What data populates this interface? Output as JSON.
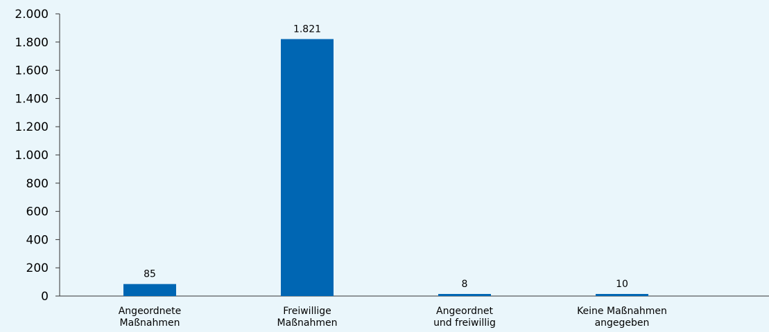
{
  "chart_data": {
    "type": "bar",
    "categories": [
      [
        "Angeordnete",
        "Maßnahmen"
      ],
      [
        "Freiwillige",
        "Maßnahmen"
      ],
      [
        "Angeordnet",
        "und freiwillig"
      ],
      [
        "Keine Maßnahmen",
        "angegeben"
      ]
    ],
    "values": [
      85,
      1821,
      8,
      10
    ],
    "value_labels": [
      "85",
      "1.821",
      "8",
      "10"
    ],
    "ylim": [
      0,
      2000
    ],
    "yticks": [
      0,
      200,
      400,
      600,
      800,
      1000,
      1200,
      1400,
      1600,
      1800,
      2000
    ],
    "ytick_labels": [
      "0",
      "200",
      "400",
      "600",
      "800",
      "1.000",
      "1.200",
      "1.400",
      "1.600",
      "1.800",
      "2.000"
    ],
    "title": "",
    "xlabel": "",
    "ylabel": "",
    "grid": false,
    "legend": "none",
    "bar_color": "#0066b3",
    "axis_color": "#333333",
    "background_color": "#eaf6fb"
  }
}
